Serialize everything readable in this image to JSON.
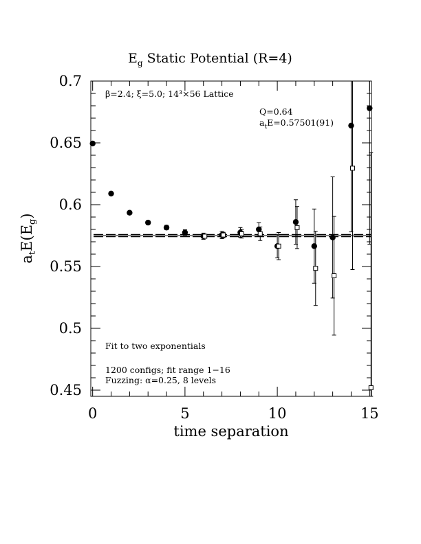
{
  "chart_data": {
    "type": "scatter",
    "title_main": "E",
    "title_sub": "g",
    "title_rest": " Static Potential (R=4)",
    "xlabel": "time separation",
    "ylabel_main": "a",
    "ylabel_sub1": "t",
    "ylabel_mid": "E(E",
    "ylabel_sub2": "g",
    "ylabel_end": ")",
    "xlim": [
      -0.1,
      15.1
    ],
    "ylim": [
      0.445,
      0.7
    ],
    "x_ticks": [
      0,
      5,
      10,
      15
    ],
    "x_tick_labels": [
      "0",
      "5",
      "10",
      "15"
    ],
    "y_ticks": [
      0.45,
      0.5,
      0.55,
      0.6,
      0.65,
      0.7
    ],
    "y_tick_labels": [
      "0.45",
      "0.5",
      "0.55",
      "0.6",
      "0.65",
      "0.7"
    ],
    "fit_value": 0.57501,
    "fit_error": 0.00091,
    "annotations": {
      "lattice": "β=2.4; ξ=5.0; 14³×56 Lattice",
      "q_value": "Q=0.64",
      "fit_prefix": "a",
      "fit_sub": "t",
      "fit_rest": "E=0.57501(91)",
      "fit_desc": "Fit to two exponentials",
      "configs": "1200 configs; fit range 1−16",
      "fuzzing": "Fuzzing: α=0.25, 8 levels"
    },
    "series": [
      {
        "marker": "filled-circle",
        "points": [
          {
            "x": 0,
            "y": 0.6495,
            "err": 0.0008
          },
          {
            "x": 1,
            "y": 0.609,
            "err": 0.001
          },
          {
            "x": 2,
            "y": 0.5935,
            "err": 0.0012
          },
          {
            "x": 3,
            "y": 0.5855,
            "err": 0.0015
          },
          {
            "x": 4,
            "y": 0.5815,
            "err": 0.0018
          },
          {
            "x": 5,
            "y": 0.5775,
            "err": 0.0022
          },
          {
            "x": 6,
            "y": 0.5745,
            "err": 0.0025
          },
          {
            "x": 7,
            "y": 0.5755,
            "err": 0.003
          },
          {
            "x": 8,
            "y": 0.5775,
            "err": 0.004
          },
          {
            "x": 9,
            "y": 0.58,
            "err": 0.0055
          },
          {
            "x": 10,
            "y": 0.5665,
            "err": 0.0095
          },
          {
            "x": 11,
            "y": 0.586,
            "err": 0.018
          },
          {
            "x": 12,
            "y": 0.5665,
            "err": 0.03
          },
          {
            "x": 13,
            "y": 0.5735,
            "err": 0.049
          },
          {
            "x": 14,
            "y": 0.664,
            "err": 0.086
          },
          {
            "x": 15,
            "y": 0.678,
            "err": 0.11
          }
        ]
      },
      {
        "marker": "open-square",
        "points": [
          {
            "x": 6,
            "y": 0.5745,
            "err": 0.0015
          },
          {
            "x": 7,
            "y": 0.5755,
            "err": 0.0022
          },
          {
            "x": 8,
            "y": 0.5765,
            "err": 0.0035
          },
          {
            "x": 9,
            "y": 0.5765,
            "err": 0.0055
          },
          {
            "x": 10,
            "y": 0.5665,
            "err": 0.011
          },
          {
            "x": 11,
            "y": 0.5815,
            "err": 0.017
          },
          {
            "x": 12,
            "y": 0.5485,
            "err": 0.03
          },
          {
            "x": 13,
            "y": 0.5425,
            "err": 0.048
          },
          {
            "x": 14,
            "y": 0.6295,
            "err": 0.082
          },
          {
            "x": 15,
            "y": 0.452,
            "err": 0.19
          }
        ]
      }
    ]
  }
}
